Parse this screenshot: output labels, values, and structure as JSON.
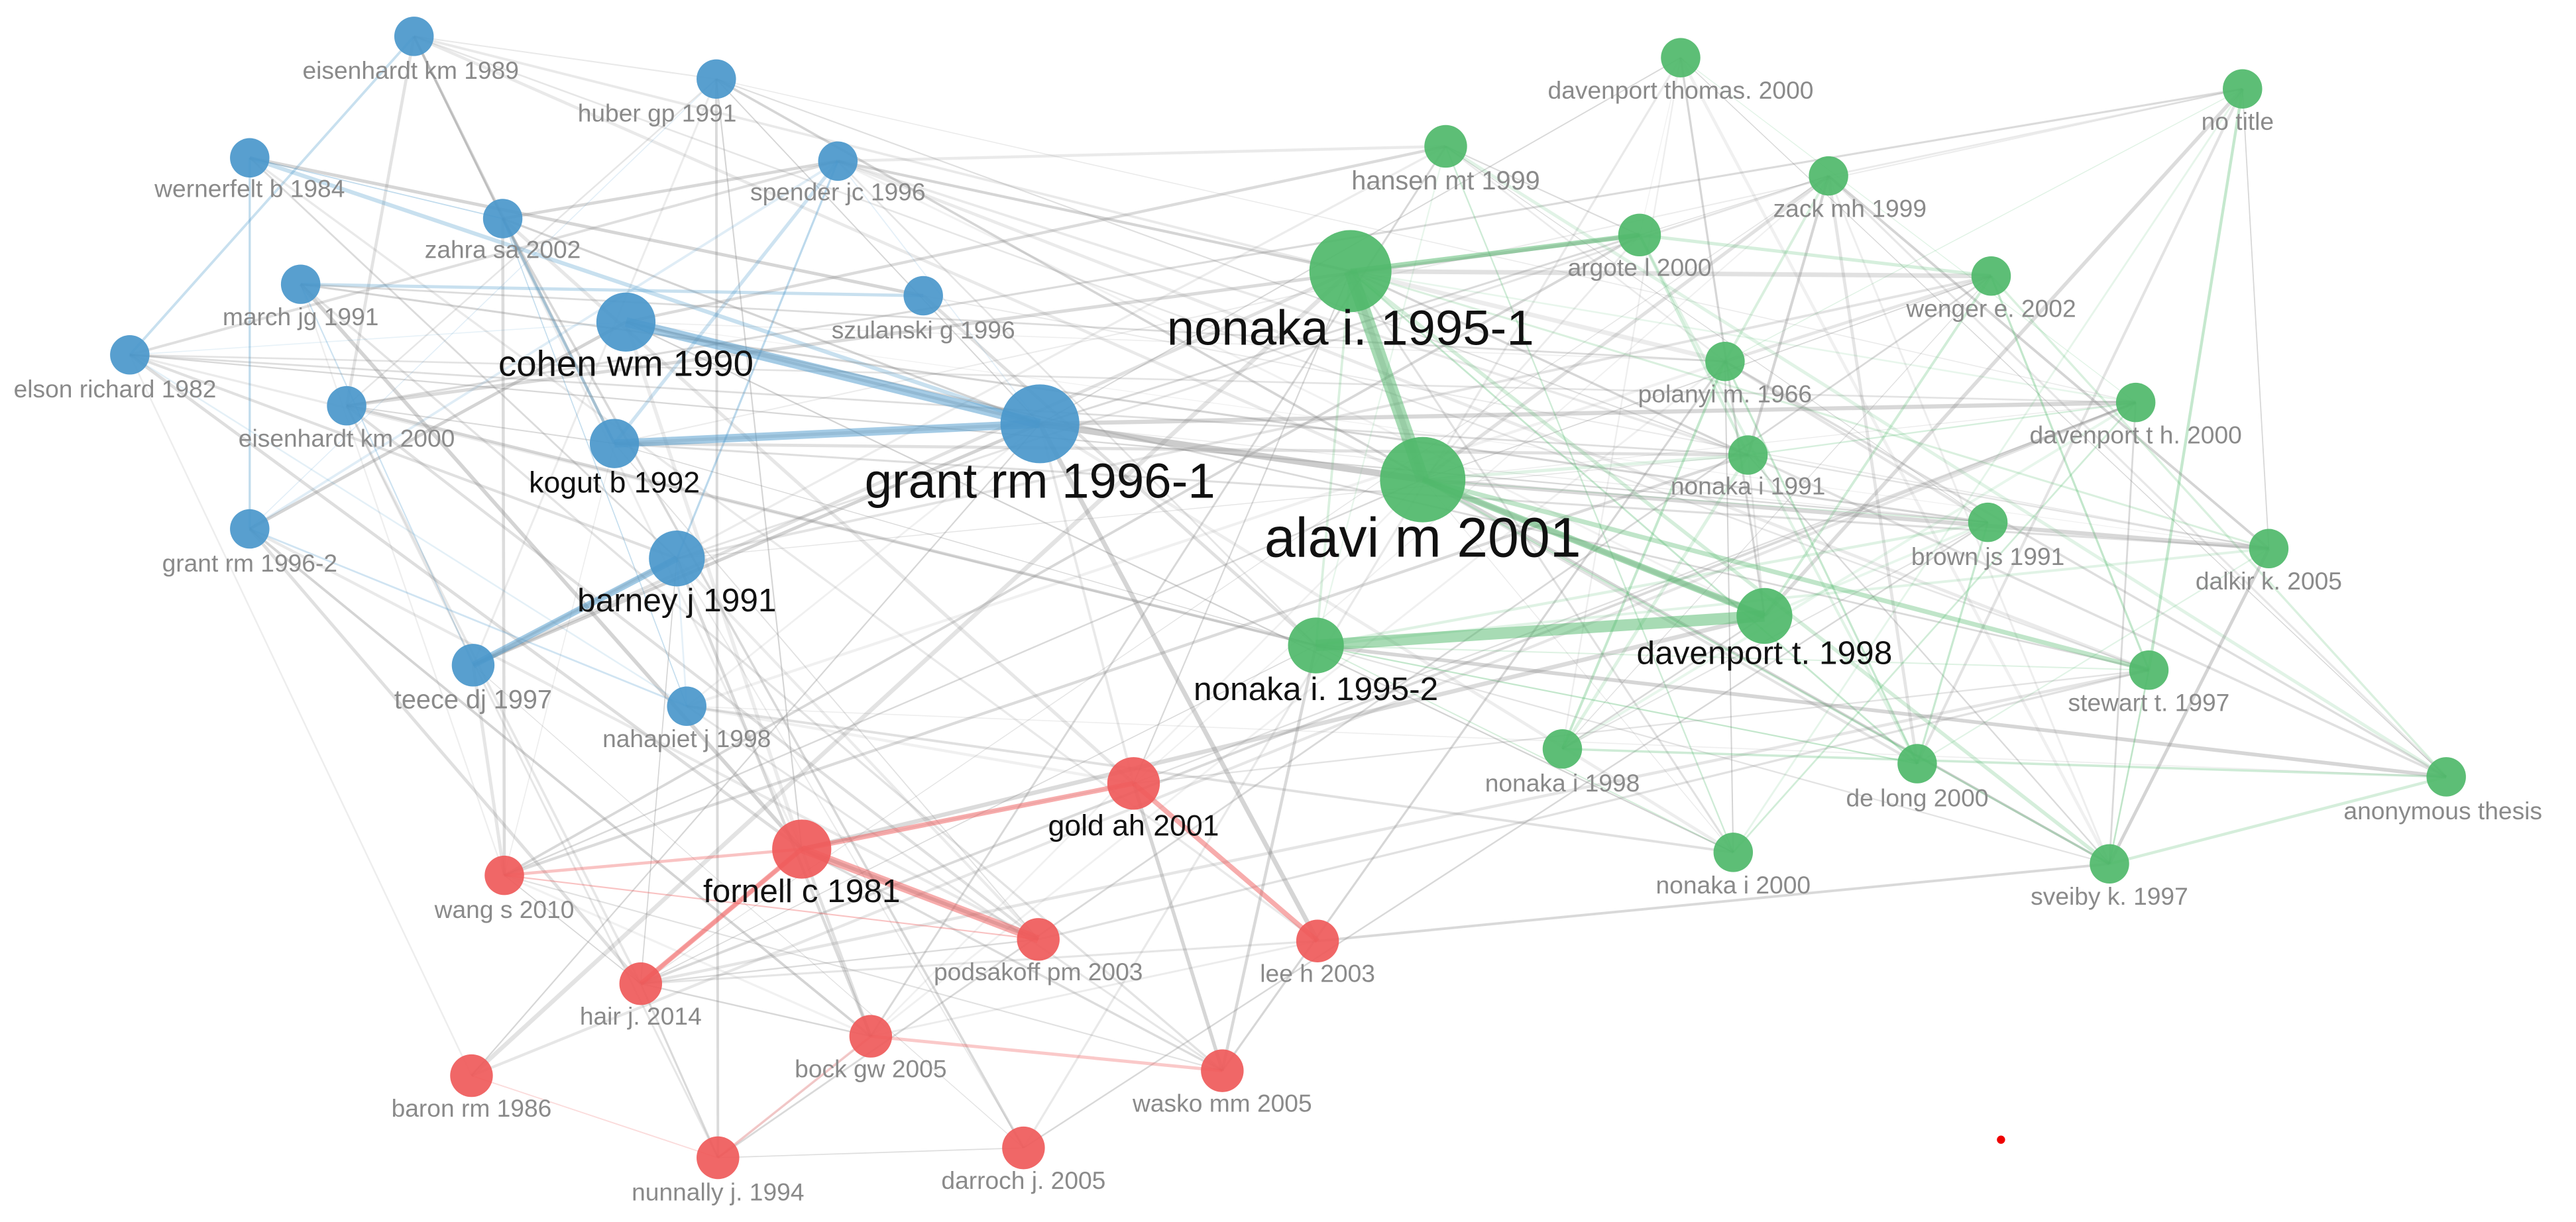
{
  "clusters": [
    {
      "color": "#4a97cb",
      "nodes": [
        "eisenhardt km 1989",
        "huber gp 1991",
        "wernerfelt b 1984",
        "spender jc 1996",
        "zahra sa 2002",
        "march jg 1991",
        "cohen wm 1990",
        "szulanski g 1996",
        "elson richard 1982",
        "eisenhardt km 2000",
        "grant rm 1996-1",
        "kogut b 1992",
        "grant rm 1996-2",
        "barney j 1991",
        "teece dj 1997",
        "nahapiet j 1998"
      ]
    },
    {
      "color": "#4fb86a",
      "nodes": [
        "davenport thomas. 2000",
        "no title",
        "hansen mt 1999",
        "zack mh 1999",
        "nonaka i. 1995-1",
        "argote l 2000",
        "wenger e. 2002",
        "polanyi m. 1966",
        "davenport t h. 2000",
        "nonaka i 1991",
        "alavi m 2001",
        "brown js 1991",
        "dalkir k. 2005",
        "nonaka i. 1995-2",
        "davenport t. 1998",
        "stewart t. 1997",
        "nonaka i 1998",
        "de long 2000",
        "anonymous thesis",
        "nonaka i 2000",
        "sveiby k. 1997"
      ]
    },
    {
      "color": "#ef5a5a",
      "nodes": [
        "gold ah 2001",
        "fornell c 1981",
        "wang s 2010",
        "podsakoff pm 2003",
        "lee h 2003",
        "hair j. 2014",
        "bock gw 2005",
        "baron rm 1986",
        "wasko mm 2005",
        "nunnally j. 1994",
        "darroch j. 2005"
      ]
    }
  ]
}
